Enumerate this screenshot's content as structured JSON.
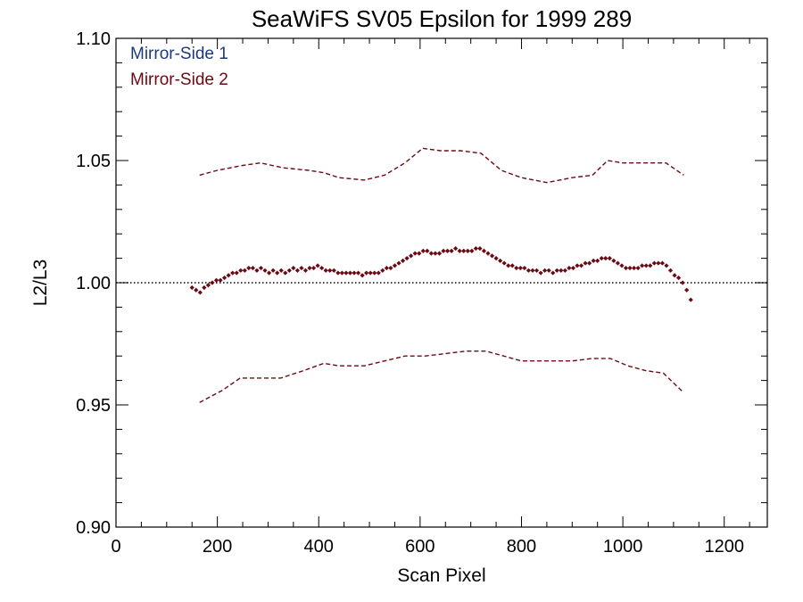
{
  "chart_data": {
    "type": "scatter",
    "title": "SeaWiFS SV05 Epsilon for 1999 289",
    "xlabel": "Scan Pixel",
    "ylabel": "L2/L3",
    "xlim": [
      0,
      1285
    ],
    "ylim": [
      0.9,
      1.1
    ],
    "x_major_ticks": [
      0,
      200,
      400,
      600,
      800,
      1000,
      1200
    ],
    "x_tick_labels": [
      "0",
      "200",
      "400",
      "600",
      "800",
      "1000",
      "1200"
    ],
    "y_major_ticks": [
      0.9,
      0.95,
      1.0,
      1.05,
      1.1
    ],
    "y_tick_labels": [
      "0.90",
      "0.95",
      "1.00",
      "1.05",
      "1.10"
    ],
    "x_minor_step": 50,
    "y_minor_step": 0.01,
    "reference_line": {
      "y": 1.0,
      "style": "dotted"
    },
    "legend": {
      "placement": "top-left",
      "entries": [
        {
          "label": "Mirror-Side 1",
          "color": "#1f3a7a"
        },
        {
          "label": "Mirror-Side 2",
          "color": "#6b0a14"
        }
      ]
    },
    "series": [
      {
        "name": "Mirror-Side 2",
        "kind": "points",
        "color": "#6b0a14",
        "x": [
          150,
          158,
          166,
          174,
          182,
          190,
          198,
          206,
          214,
          222,
          230,
          238,
          246,
          254,
          262,
          270,
          278,
          286,
          294,
          302,
          310,
          318,
          326,
          334,
          342,
          350,
          358,
          366,
          374,
          382,
          390,
          398,
          406,
          414,
          422,
          430,
          438,
          446,
          454,
          462,
          470,
          478,
          486,
          494,
          502,
          510,
          518,
          526,
          534,
          542,
          550,
          558,
          566,
          574,
          582,
          590,
          598,
          606,
          614,
          622,
          630,
          638,
          646,
          654,
          662,
          670,
          678,
          686,
          694,
          702,
          710,
          718,
          726,
          734,
          742,
          750,
          758,
          766,
          774,
          782,
          790,
          798,
          806,
          814,
          822,
          830,
          838,
          846,
          854,
          862,
          870,
          878,
          886,
          894,
          902,
          910,
          918,
          926,
          934,
          942,
          950,
          958,
          966,
          974,
          982,
          990,
          998,
          1006,
          1014,
          1022,
          1030,
          1038,
          1046,
          1054,
          1062,
          1070,
          1078,
          1086,
          1094,
          1102,
          1110,
          1118,
          1126,
          1134
        ],
        "y": [
          0.998,
          0.997,
          0.996,
          0.998,
          0.999,
          1.0,
          1.001,
          1.001,
          1.002,
          1.003,
          1.004,
          1.004,
          1.005,
          1.005,
          1.006,
          1.006,
          1.005,
          1.006,
          1.005,
          1.004,
          1.005,
          1.004,
          1.005,
          1.004,
          1.005,
          1.006,
          1.005,
          1.006,
          1.005,
          1.006,
          1.006,
          1.007,
          1.006,
          1.005,
          1.005,
          1.005,
          1.004,
          1.004,
          1.004,
          1.004,
          1.004,
          1.004,
          1.003,
          1.004,
          1.004,
          1.004,
          1.004,
          1.005,
          1.006,
          1.006,
          1.007,
          1.008,
          1.009,
          1.01,
          1.011,
          1.012,
          1.012,
          1.013,
          1.013,
          1.012,
          1.012,
          1.012,
          1.013,
          1.013,
          1.013,
          1.014,
          1.013,
          1.013,
          1.013,
          1.013,
          1.014,
          1.014,
          1.013,
          1.012,
          1.011,
          1.01,
          1.009,
          1.008,
          1.007,
          1.007,
          1.006,
          1.006,
          1.006,
          1.005,
          1.005,
          1.005,
          1.004,
          1.005,
          1.005,
          1.004,
          1.005,
          1.005,
          1.005,
          1.006,
          1.006,
          1.007,
          1.007,
          1.008,
          1.008,
          1.009,
          1.009,
          1.01,
          1.01,
          1.01,
          1.009,
          1.008,
          1.007,
          1.006,
          1.006,
          1.006,
          1.006,
          1.007,
          1.007,
          1.007,
          1.008,
          1.008,
          1.008,
          1.007,
          1.005,
          1.003,
          1.002,
          1.0,
          0.997,
          0.993
        ]
      },
      {
        "name": "Upper bound",
        "kind": "dashed-line",
        "color": "#6b0a14",
        "x": [
          165,
          200,
          250,
          285,
          330,
          380,
          410,
          440,
          490,
          530,
          570,
          605,
          640,
          680,
          720,
          760,
          800,
          850,
          900,
          940,
          970,
          1000,
          1040,
          1085,
          1120
        ],
        "y": [
          1.044,
          1.046,
          1.048,
          1.049,
          1.047,
          1.046,
          1.045,
          1.043,
          1.042,
          1.044,
          1.049,
          1.055,
          1.054,
          1.054,
          1.053,
          1.046,
          1.043,
          1.041,
          1.043,
          1.044,
          1.05,
          1.049,
          1.049,
          1.049,
          1.044
        ]
      },
      {
        "name": "Lower bound",
        "kind": "dashed-line",
        "color": "#6b0a14",
        "x": [
          165,
          210,
          245,
          285,
          325,
          370,
          410,
          440,
          490,
          530,
          570,
          610,
          650,
          690,
          730,
          765,
          800,
          850,
          900,
          940,
          975,
          1010,
          1045,
          1080,
          1120
        ],
        "y": [
          0.951,
          0.956,
          0.961,
          0.961,
          0.961,
          0.964,
          0.967,
          0.966,
          0.966,
          0.968,
          0.97,
          0.97,
          0.971,
          0.972,
          0.972,
          0.97,
          0.968,
          0.968,
          0.968,
          0.969,
          0.969,
          0.966,
          0.964,
          0.963,
          0.955
        ]
      }
    ]
  }
}
